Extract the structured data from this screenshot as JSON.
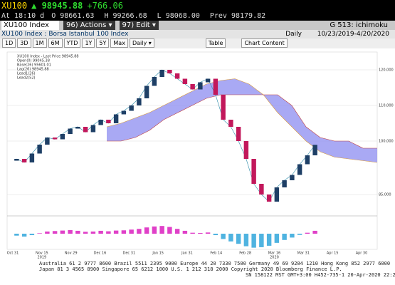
{
  "header": {
    "ticker": "XU100",
    "last": "98945.88",
    "change": "+766.06",
    "quote": [
      "At 18:10 d",
      "O 98661.63",
      "H 99266.68",
      "L 98068.00",
      "Prev 98179.82"
    ]
  },
  "toolbar": {
    "security": "XU100 Index",
    "actions": "96) Actions ▾",
    "edit": "97) Edit ▾",
    "function": "G 513: ichimoku",
    "description": "XU100 Index : Borsa Istanbul 100 Index",
    "period": "Daily",
    "range": "10/23/2019-4/20/2020",
    "buttons": [
      "1D",
      "3D",
      "1M",
      "6M",
      "YTD",
      "1Y",
      "5Y",
      "Max",
      "Daily ▾",
      "Table",
      "Chart Content"
    ]
  },
  "chart_data": {
    "type": "candlestick",
    "legend": [
      "XU100 Index - Last Price 98945.88",
      "Open(0) 99045.38",
      "Base(26) 95601.01",
      "Lag(26) 98945.88",
      "Lead1(26)",
      "Lead2(52)"
    ],
    "open": [
      94500,
      95000,
      94000,
      96500,
      99000,
      101000,
      100500,
      102000,
      103500,
      104000,
      102500,
      104500,
      106000,
      105000,
      107500,
      108500,
      110000,
      112000,
      115500,
      118000,
      120000,
      119000,
      117500,
      116000,
      114500,
      116500,
      117500,
      113000,
      106000,
      104000,
      100000,
      95000,
      88000,
      85000,
      83000,
      87000,
      89000,
      90500,
      93500,
      96000
    ],
    "close": [
      95000,
      94000,
      96500,
      99000,
      101000,
      100500,
      102000,
      103500,
      104000,
      102500,
      104500,
      106000,
      105000,
      107500,
      108500,
      110000,
      112000,
      115500,
      118000,
      120000,
      119000,
      117500,
      116000,
      114500,
      116500,
      117500,
      113000,
      106000,
      104000,
      100000,
      95000,
      88000,
      85000,
      83000,
      87000,
      89000,
      90500,
      93500,
      96000,
      98945
    ],
    "span_a": [
      104000,
      105000,
      106500,
      108000,
      110000,
      112000,
      114000,
      116000,
      117000,
      117500,
      116000,
      113000,
      108000,
      104000,
      100000,
      97000,
      95500,
      95000,
      94500,
      94000
    ],
    "span_b": [
      100000,
      100000,
      101000,
      103000,
      106000,
      108000,
      110000,
      112000,
      113000,
      113000,
      113000,
      113000,
      113000,
      110000,
      104000,
      101000,
      100000,
      100000,
      98000,
      98000
    ],
    "ylim": [
      80000,
      125000
    ],
    "yticks": [
      {
        "value": 85000,
        "label": "85,000"
      },
      {
        "value": 100000,
        "label": "100,000"
      },
      {
        "value": 110000,
        "label": "110,000"
      },
      {
        "value": 120000,
        "label": "120,000"
      }
    ],
    "macd": [
      -800,
      -1200,
      -600,
      200,
      900,
      1100,
      1300,
      1500,
      1200,
      800,
      900,
      1200,
      1000,
      1300,
      1400,
      1700,
      2000,
      2600,
      3000,
      3200,
      2800,
      2000,
      1200,
      400,
      300,
      500,
      -600,
      -2200,
      -3200,
      -4200,
      -5200,
      -5800,
      -5600,
      -5000,
      -3800,
      -2600,
      -1600,
      -500,
      400,
      1200
    ],
    "macd_lim": [
      -6500,
      6500
    ],
    "up_color": "#1e3f66",
    "down_color": "#c2185b",
    "cloud_color": "#8c8cf0",
    "macd_pos": "#e040c8",
    "macd_neg": "#4fb3e0",
    "x_labels": [
      "Oct 31",
      "Nov 15",
      "Nov 29",
      "Dec 16",
      "Dec 31",
      "Jan 15",
      "Jan 31",
      "Feb 14",
      "Feb 28",
      "Mar 16",
      "Mar 31",
      "Apr 15",
      "Apr 30"
    ],
    "years": [
      "2019",
      "2020"
    ]
  },
  "footer": [
    "Australia 61 2 9777 8600 Brazil 5511 2395 9000 Europe 44 20 7330 7500 Germany 49 69 9204 1210 Hong Kong 852 2977 6000",
    "Japan 81 3 4565 8900 Singapore 65 6212 1000 U.S. 1 212 318 2000 Copyright 2020 Bloomberg Finance L.P.",
    "SN 158122 MST GMT+3:00 H452-735-1 20-Apr-2020 22:28:24"
  ]
}
